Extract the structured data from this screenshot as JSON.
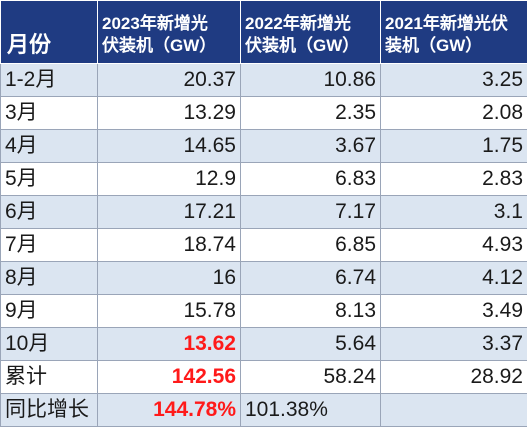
{
  "header": {
    "month": "月份",
    "col2023_line1": "2023年新增光",
    "col2023_line2": "伏装机（GW）",
    "col2022_line1": "2022年新增光",
    "col2022_line2": "伏装机（GW）",
    "col2021_line1": "2021年新增光伏",
    "col2021_line2": "装机（GW）"
  },
  "rows": [
    {
      "month": "1-2月",
      "y2023": "20.37",
      "y2022": "10.86",
      "y2021": "3.25"
    },
    {
      "month": "3月",
      "y2023": "13.29",
      "y2022": "2.35",
      "y2021": "2.08"
    },
    {
      "month": "4月",
      "y2023": "14.65",
      "y2022": "3.67",
      "y2021": "1.75"
    },
    {
      "month": "5月",
      "y2023": "12.9",
      "y2022": "6.83",
      "y2021": "2.83"
    },
    {
      "month": "6月",
      "y2023": "17.21",
      "y2022": "7.17",
      "y2021": "3.1"
    },
    {
      "month": "7月",
      "y2023": "18.74",
      "y2022": "6.85",
      "y2021": "4.93"
    },
    {
      "month": "8月",
      "y2023": "16",
      "y2022": "6.74",
      "y2021": "4.12"
    },
    {
      "month": "9月",
      "y2023": "15.78",
      "y2022": "8.13",
      "y2021": "3.49"
    },
    {
      "month": "10月",
      "y2023": "13.62",
      "y2022": "5.64",
      "y2021": "3.37"
    },
    {
      "month": "累计",
      "y2023": "142.56",
      "y2022": "58.24",
      "y2021": "28.92"
    },
    {
      "month": "同比增长",
      "y2023": "144.78%",
      "y2022": "101.38%",
      "y2021": ""
    }
  ],
  "colors": {
    "header_bg": "#1f3b82",
    "band_bg": "#dbe5f1",
    "highlight": "#ff1a1a"
  }
}
